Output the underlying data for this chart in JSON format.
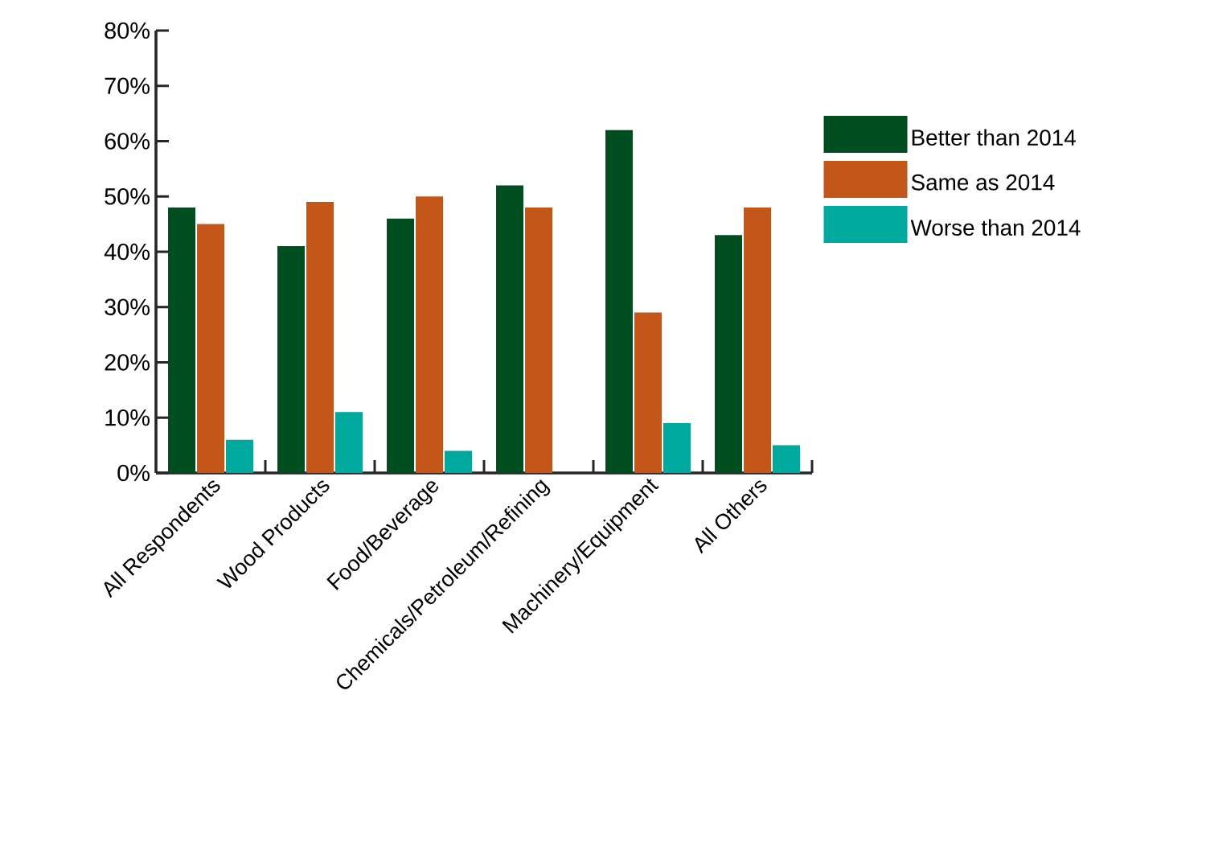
{
  "chart_data": {
    "type": "bar",
    "categories": [
      "All Respondents",
      "Wood Products",
      "Food/Beverage",
      "Chemicals/Petroleum/Refining",
      "Machinery/Equipment",
      "All Others"
    ],
    "series": [
      {
        "name": "Better than 2014",
        "color": "#004d1f",
        "values": [
          48,
          41,
          46,
          52,
          62,
          43
        ]
      },
      {
        "name": "Same as 2014",
        "color": "#c4561a",
        "values": [
          45,
          49,
          50,
          48,
          29,
          48
        ]
      },
      {
        "name": "Worse than 2014",
        "color": "#00a99d",
        "values": [
          6,
          11,
          4,
          0,
          9,
          5
        ]
      }
    ],
    "ylim": [
      0,
      80
    ],
    "yticks": [
      {
        "value": 0,
        "label": "0%"
      },
      {
        "value": 10,
        "label": "10%"
      },
      {
        "value": 20,
        "label": "20%"
      },
      {
        "value": 30,
        "label": "30%"
      },
      {
        "value": 40,
        "label": "40%"
      },
      {
        "value": 50,
        "label": "50%"
      },
      {
        "value": 60,
        "label": "60%"
      },
      {
        "value": 70,
        "label": "70%"
      },
      {
        "value": 80,
        "label": "80%"
      }
    ],
    "legend": "right",
    "grid": false
  }
}
